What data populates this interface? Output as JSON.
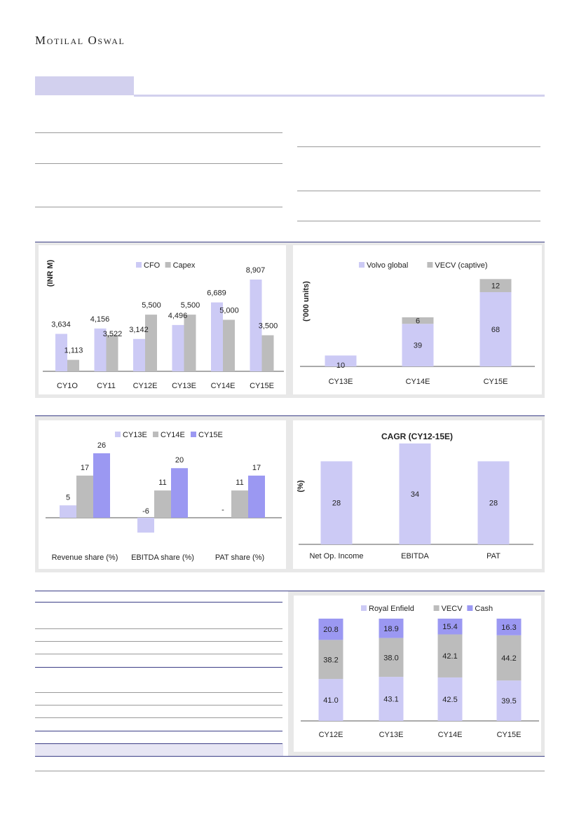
{
  "header": {
    "brand": "Motilal Oswal"
  },
  "colors": {
    "series_light": "#cccaf5",
    "series_gray": "#bcbcbc",
    "series_blue": "#9b98f2",
    "band": "#e8e8e8",
    "navy_rule": "#3b3e86"
  },
  "chart_data": [
    {
      "id": "cfo-capex",
      "type": "bar",
      "ylabel": "(INR M)",
      "categories": [
        "CY1O",
        "CY11",
        "CY12E",
        "CY13E",
        "CY14E",
        "CY15E"
      ],
      "series": [
        {
          "name": "CFO",
          "values": [
            3634,
            4156,
            3142,
            4496,
            6689,
            8907
          ],
          "labels": [
            "3,634",
            "4,156",
            "3,142",
            "4,496",
            "6,689",
            "8,907"
          ]
        },
        {
          "name": "Capex",
          "values": [
            1113,
            3522,
            5500,
            5500,
            5000,
            3500
          ],
          "labels": [
            "1,113",
            "3,522",
            "5,500",
            "5,500",
            "5,000",
            "3,500"
          ]
        }
      ],
      "legend": "top",
      "grid": false
    },
    {
      "id": "volumes",
      "type": "bar",
      "stacked": true,
      "ylabel": "('000 units)",
      "categories": [
        "CY13E",
        "CY14E",
        "CY15E"
      ],
      "series": [
        {
          "name": "Volvo global",
          "values": [
            10,
            39,
            68
          ]
        },
        {
          "name": "VECV (captive)",
          "values": [
            0,
            6,
            12
          ]
        }
      ],
      "legend": "top",
      "grid": false
    },
    {
      "id": "shares",
      "type": "bar",
      "categories": [
        "Revenue share (%)",
        "EBITDA share (%)",
        "PAT share (%)"
      ],
      "series": [
        {
          "name": "CY13E",
          "values": [
            5,
            -6,
            null
          ],
          "labels": [
            "5",
            "-6",
            "-"
          ]
        },
        {
          "name": "CY14E",
          "values": [
            17,
            11,
            11
          ],
          "labels": [
            "17",
            "11",
            "11"
          ]
        },
        {
          "name": "CY15E",
          "values": [
            26,
            20,
            17
          ],
          "labels": [
            "26",
            "20",
            "17"
          ]
        }
      ],
      "legend": "top",
      "grid": false
    },
    {
      "id": "cagr",
      "type": "bar",
      "title": "CAGR (CY12-15E)",
      "ylabel": "(%)",
      "categories": [
        "Net Op. Income",
        "EBITDA",
        "PAT"
      ],
      "values": [
        28,
        34,
        28
      ],
      "grid": false
    },
    {
      "id": "sotp-mix",
      "type": "bar",
      "stacked": true,
      "categories": [
        "CY12E",
        "CY13E",
        "CY14E",
        "CY15E"
      ],
      "series": [
        {
          "name": "Royal Enfield",
          "values": [
            41.0,
            43.1,
            42.5,
            39.5
          ],
          "labels": [
            "41.0",
            "43.1",
            "42.5",
            "39.5"
          ]
        },
        {
          "name": "VECV",
          "values": [
            38.2,
            38.0,
            42.1,
            44.2
          ],
          "labels": [
            "38.2",
            "38.0",
            "42.1",
            "44.2"
          ]
        },
        {
          "name": "Cash",
          "values": [
            20.8,
            18.9,
            15.4,
            16.3
          ],
          "labels": [
            "20.8",
            "18.9",
            "15.4",
            "16.3"
          ]
        }
      ],
      "legend": "top",
      "grid": false
    }
  ]
}
